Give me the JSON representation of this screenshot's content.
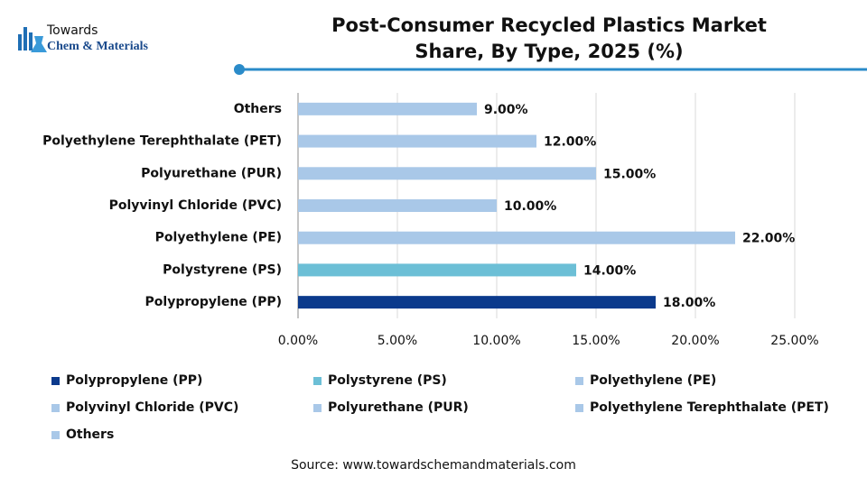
{
  "logo": {
    "top": "Towards",
    "brand": "Chem & Materials"
  },
  "chart_data": {
    "type": "bar",
    "orientation": "horizontal",
    "title": "Post-Consumer Recycled Plastics Market Share, By Type, 2025 (%)",
    "categories": [
      "Polypropylene (PP)",
      "Polystyrene (PS)",
      "Polyethylene (PE)",
      "Polyvinyl Chloride (PVC)",
      "Polyurethane (PUR)",
      "Polyethylene Terephthalate (PET)",
      "Others"
    ],
    "values": [
      18,
      14,
      22,
      10,
      15,
      12,
      9
    ],
    "value_labels": [
      "18.00%",
      "14.00%",
      "22.00%",
      "10.00%",
      "15.00%",
      "12.00%",
      "9.00%"
    ],
    "colors": [
      "#0b3a8c",
      "#6cbfd6",
      "#a9c8e8",
      "#a9c8e8",
      "#a9c8e8",
      "#a9c8e8",
      "#a9c8e8"
    ],
    "xlim": [
      0,
      25
    ],
    "xticks": [
      {
        "value": 0,
        "label": "0.00%"
      },
      {
        "value": 5,
        "label": "5.00%"
      },
      {
        "value": 10,
        "label": "10.00%"
      },
      {
        "value": 15,
        "label": "15.00%"
      },
      {
        "value": 20,
        "label": "20.00%"
      },
      {
        "value": 25,
        "label": "25.00%"
      }
    ],
    "grid": true,
    "legend": "bottom"
  },
  "source": "Source: www.towardschemandmaterials.com"
}
